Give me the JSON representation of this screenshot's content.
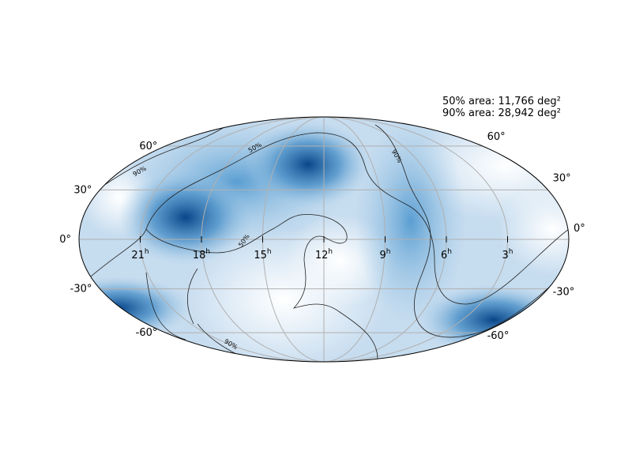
{
  "annotations": [
    "50% area: 11,766 deg²",
    "90% area: 28,942 deg²"
  ],
  "lat_labels_left": [
    "60°",
    "30°",
    "0°",
    "-30°",
    "-60°"
  ],
  "lat_labels_right": [
    "60°",
    "30°",
    "0°",
    "-30°",
    "-60°"
  ],
  "ra_labels": [
    {
      "value": "21",
      "unit": "h"
    },
    {
      "value": "18",
      "unit": "h"
    },
    {
      "value": "15",
      "unit": "h"
    },
    {
      "value": "12",
      "unit": "h"
    },
    {
      "value": "9",
      "unit": "h"
    },
    {
      "value": "6",
      "unit": "h"
    },
    {
      "value": "3",
      "unit": "h"
    }
  ],
  "contour_labels": [
    "90%",
    "50%",
    "90%",
    "50%",
    "90%"
  ]
}
